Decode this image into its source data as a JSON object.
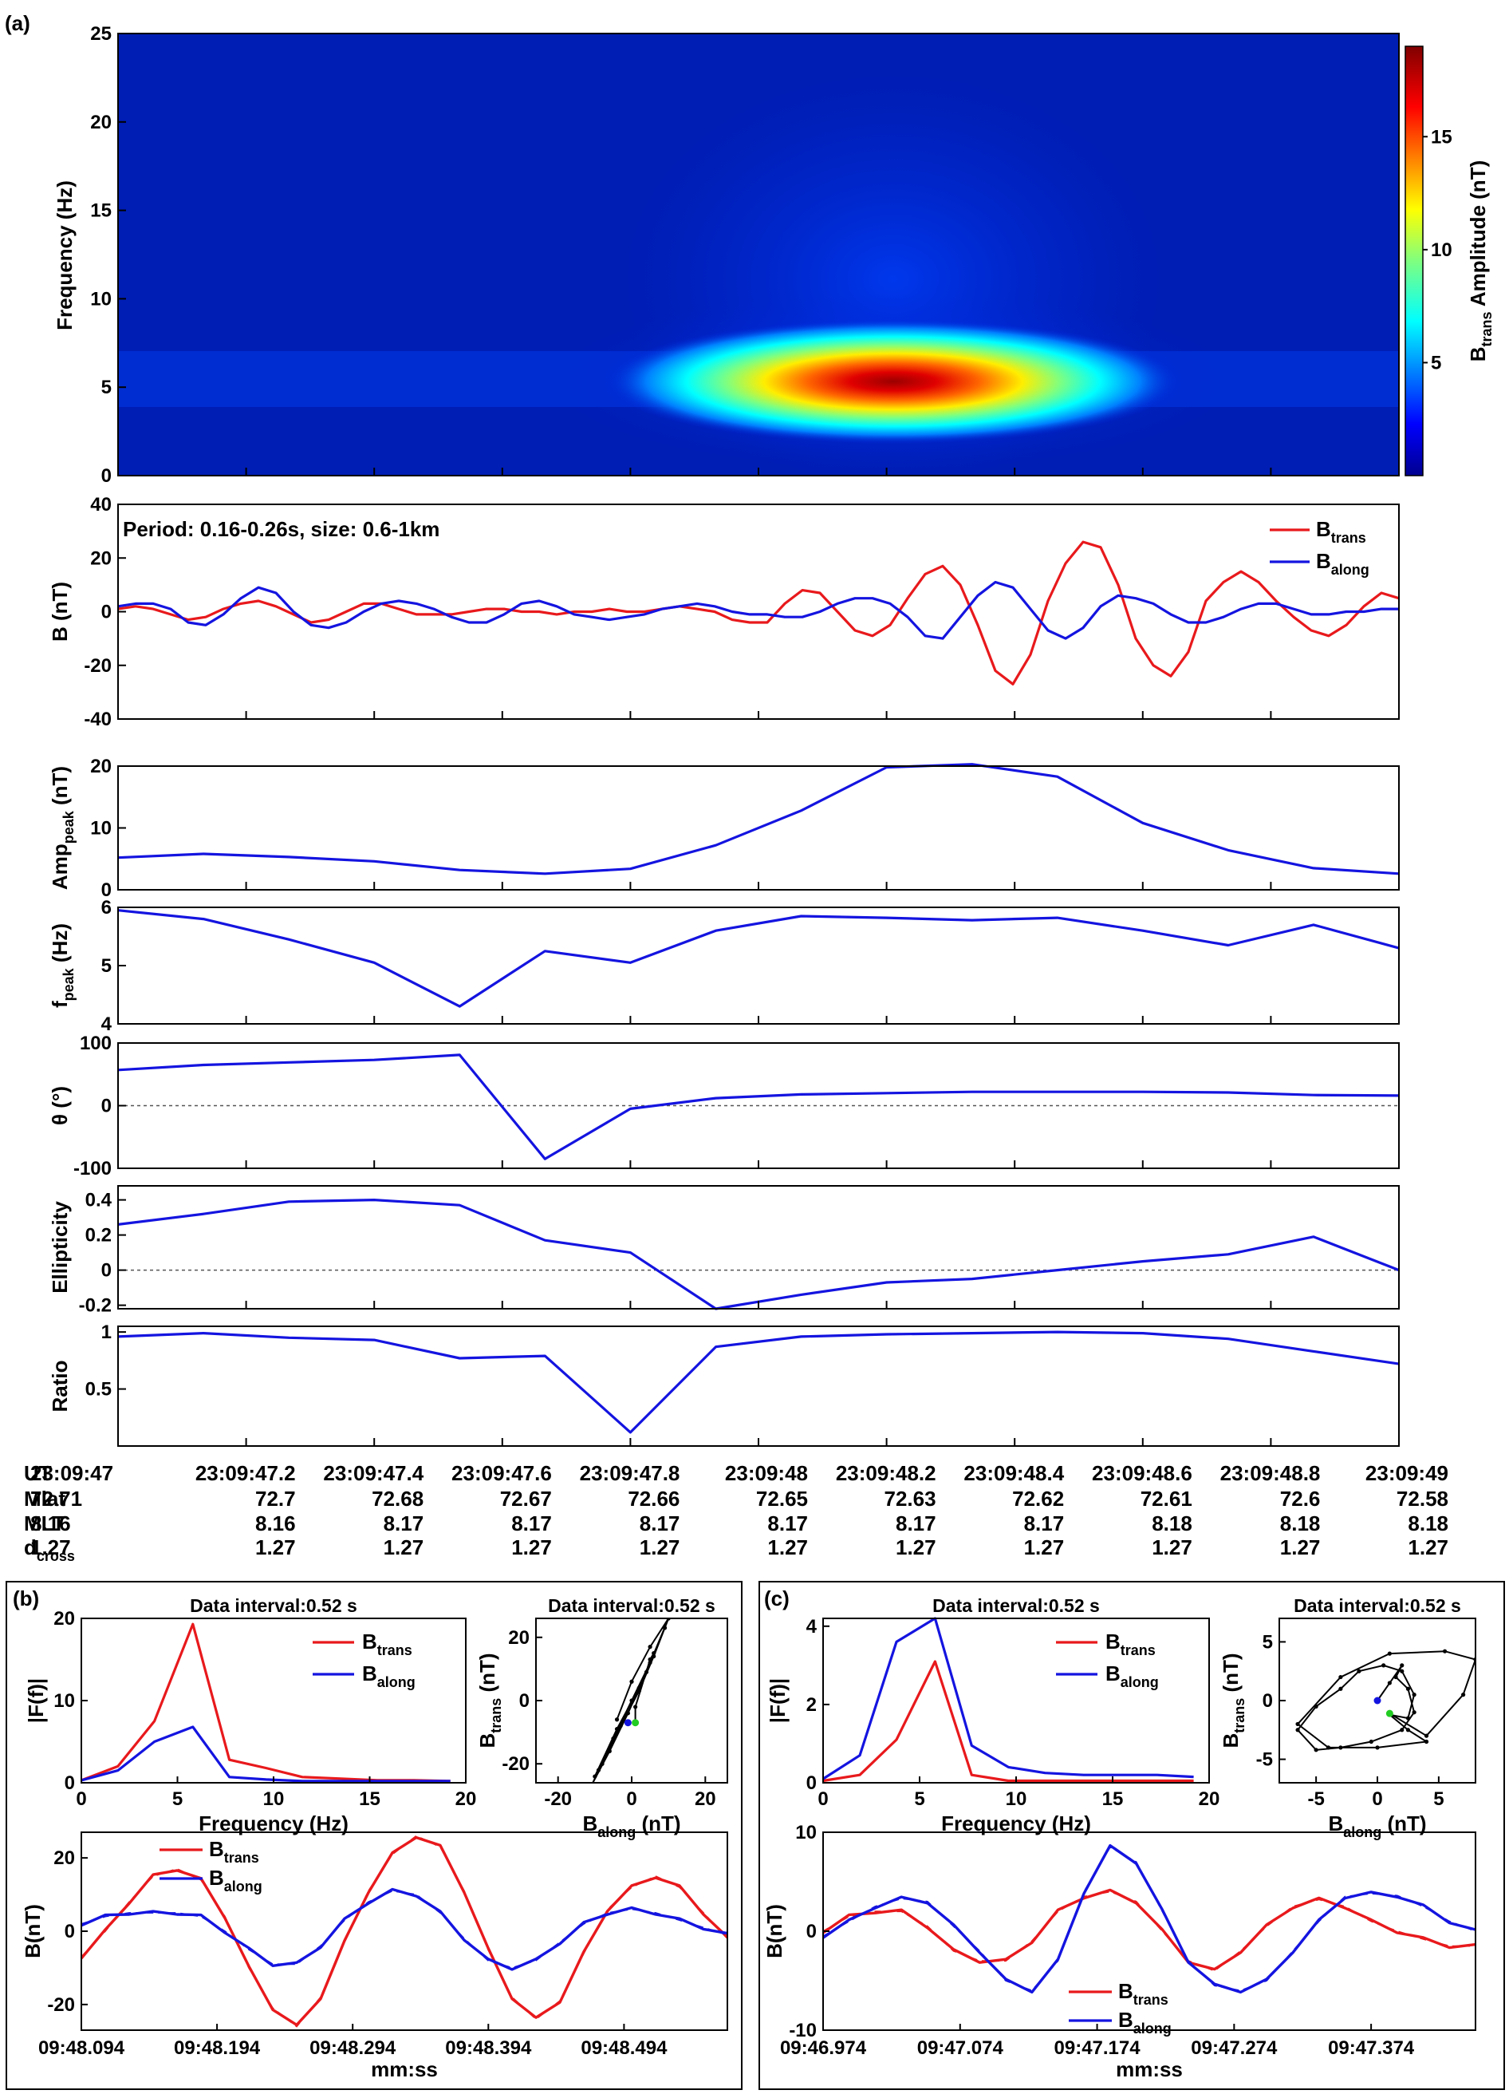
{
  "colors": {
    "trans": "#e8191c",
    "along": "#1414e0",
    "axis": "#000000",
    "zero_line": "#555555",
    "green_marker": "#22cc22"
  },
  "panel_letters": {
    "a": "(a)",
    "b": "(b)",
    "c": "(c)"
  },
  "chart_data": [
    {
      "id": "spectrogram",
      "type": "heatmap",
      "ylabel": "Frequency (Hz)",
      "ylim": [
        0,
        25
      ],
      "yticks": [
        0,
        5,
        10,
        15,
        20,
        25
      ],
      "colorbar": {
        "label_main": "B",
        "label_sub": "trans",
        "label_rest": " Amplitude (nT)",
        "range": [
          0,
          19
        ],
        "ticks": [
          5,
          10,
          15
        ]
      },
      "peak": {
        "freq_hz": 5.8,
        "max_nt": 19
      },
      "colormap": "jet"
    },
    {
      "id": "waveform",
      "type": "line",
      "annotation": "Period: 0.16-0.26s, size: 0.6-1km",
      "ylabel_main": "B (nT)",
      "ylim": [
        -40,
        40
      ],
      "yticks": [
        -40,
        -20,
        0,
        20,
        40
      ],
      "legend_position": "top-right",
      "series": [
        {
          "name_main": "B",
          "name_sub": "along",
          "color": "#1414e0",
          "values": [
            2,
            3,
            3,
            1,
            -4,
            -5,
            -1,
            5,
            9,
            7,
            0,
            -5,
            -6,
            -4,
            0,
            3,
            4,
            3,
            1,
            -2,
            -4,
            -4,
            -1,
            3,
            4,
            2,
            -1,
            -2,
            -3,
            -2,
            -1,
            1,
            2,
            3,
            2,
            0,
            -1,
            -1,
            -2,
            -2,
            0,
            3,
            5,
            5,
            3,
            -2,
            -9,
            -10,
            -2,
            6,
            11,
            9,
            1,
            -7,
            -10,
            -6,
            2,
            6,
            5,
            3,
            -1,
            -4,
            -4,
            -2,
            1,
            3,
            3,
            1,
            -1,
            -1,
            0,
            0,
            1,
            1
          ]
        },
        {
          "name_main": "B",
          "name_sub": "trans",
          "color": "#e8191c",
          "values": [
            1,
            2,
            1,
            -1,
            -3,
            -2,
            1,
            3,
            4,
            2,
            -1,
            -4,
            -3,
            0,
            3,
            3,
            1,
            -1,
            -1,
            -1,
            0,
            1,
            1,
            0,
            0,
            -1,
            0,
            0,
            1,
            0,
            0,
            1,
            2,
            1,
            0,
            -3,
            -4,
            -4,
            3,
            8,
            7,
            0,
            -7,
            -9,
            -5,
            5,
            14,
            17,
            10,
            -5,
            -22,
            -27,
            -16,
            4,
            18,
            26,
            24,
            10,
            -10,
            -20,
            -24,
            -15,
            4,
            11,
            15,
            11,
            4,
            -2,
            -7,
            -9,
            -5,
            2,
            7,
            5
          ]
        }
      ]
    },
    {
      "id": "amp_peak",
      "type": "line",
      "ylabel_main": "Amp",
      "ylabel_sub": "peak",
      "ylabel_rest": " (nT)",
      "ylim": [
        0,
        20
      ],
      "yticks": [
        0,
        10,
        20
      ],
      "values": [
        5.2,
        5.8,
        5.3,
        4.6,
        3.2,
        2.6,
        3.4,
        7.2,
        12.8,
        19.8,
        20.3,
        18.3,
        10.8,
        6.4,
        3.5,
        2.6
      ]
    },
    {
      "id": "f_peak",
      "type": "line",
      "ylabel_main": "f",
      "ylabel_sub": "peak",
      "ylabel_rest": " (Hz)",
      "ylim": [
        4,
        6
      ],
      "yticks": [
        4,
        5,
        6
      ],
      "values": [
        5.95,
        5.8,
        5.45,
        5.05,
        4.3,
        5.25,
        5.05,
        5.6,
        5.85,
        5.82,
        5.78,
        5.82,
        5.6,
        5.35,
        5.7,
        5.3
      ]
    },
    {
      "id": "theta",
      "type": "line",
      "ylabel_main": "θ",
      "ylabel_rest": " (°)",
      "ylim": [
        -100,
        100
      ],
      "yticks": [
        -100,
        0,
        100
      ],
      "zero_line": true,
      "values": [
        57,
        65,
        69,
        73,
        81,
        -85,
        -5,
        12,
        18,
        20,
        22,
        22,
        22,
        21,
        17,
        16
      ]
    },
    {
      "id": "ellipticity",
      "type": "line",
      "ylabel_main": "Ellipticity",
      "ylim": [
        -0.22,
        0.48
      ],
      "yticks": [
        -0.2,
        0,
        0.2,
        0.4
      ],
      "ytick_labels": [
        "-0.2",
        "0",
        "0.2",
        "0.4"
      ],
      "zero_line": true,
      "values": [
        0.26,
        0.32,
        0.39,
        0.4,
        0.37,
        0.17,
        0.1,
        -0.22,
        -0.14,
        -0.07,
        -0.05,
        0.0,
        0.05,
        0.09,
        0.19,
        0.0
      ]
    },
    {
      "id": "ratio",
      "type": "line",
      "ylabel_main": "Ratio",
      "ylim": [
        0,
        1.05
      ],
      "yticks": [
        0.5,
        1
      ],
      "ytick_labels": [
        "0.5",
        "1"
      ],
      "values": [
        0.96,
        0.99,
        0.95,
        0.93,
        0.77,
        0.79,
        0.12,
        0.87,
        0.96,
        0.98,
        0.99,
        1.0,
        0.99,
        0.94,
        0.83,
        0.72
      ]
    },
    {
      "id": "fft_b",
      "type": "line",
      "title": "Data interval:0.52 s",
      "xlabel": "Frequency (Hz)",
      "ylabel": "|F(f)|",
      "xlim": [
        0,
        20
      ],
      "ylim": [
        0,
        20
      ],
      "xticks": [
        0,
        5,
        10,
        15,
        20
      ],
      "yticks": [
        0,
        10,
        20
      ],
      "legend_position": "top-right",
      "x": [
        0,
        1.9,
        3.8,
        5.8,
        7.7,
        9.6,
        11.5,
        13.5,
        15.4,
        17.3,
        19.2
      ],
      "series": [
        {
          "name_main": "B",
          "name_sub": "trans",
          "color": "#e8191c",
          "values": [
            0.3,
            2.0,
            7.5,
            19.3,
            2.8,
            1.8,
            0.7,
            0.5,
            0.3,
            0.3,
            0.2
          ]
        },
        {
          "name_main": "B",
          "name_sub": "along",
          "color": "#1414e0",
          "values": [
            0.3,
            1.5,
            5.0,
            6.8,
            0.7,
            0.4,
            0.2,
            0.2,
            0.2,
            0.2,
            0.2
          ]
        }
      ]
    },
    {
      "id": "hodo_b",
      "type": "scatter",
      "title": "Data interval:0.52 s",
      "xlabel_main": "B",
      "xlabel_sub": "along",
      "xlabel_rest": " (nT)",
      "ylabel_main": "B",
      "ylabel_sub": "trans",
      "ylabel_rest": " (nT)",
      "xlim": [
        -26,
        26
      ],
      "ylim": [
        -26,
        26
      ],
      "xticks": [
        -20,
        0,
        20
      ],
      "yticks": [
        -20,
        0,
        20
      ],
      "points": [
        [
          -4,
          -6
        ],
        [
          0,
          6
        ],
        [
          5,
          17
        ],
        [
          10,
          26
        ],
        [
          6,
          14
        ],
        [
          2,
          3
        ],
        [
          -3,
          -8
        ],
        [
          -8,
          -20
        ],
        [
          -11,
          -27
        ],
        [
          -6,
          -16
        ],
        [
          -1,
          -4
        ],
        [
          4,
          9
        ],
        [
          9,
          23
        ],
        [
          10,
          26
        ],
        [
          5,
          12
        ],
        [
          0,
          0
        ],
        [
          -5,
          -12
        ],
        [
          -9,
          -22
        ],
        [
          -10,
          -24
        ],
        [
          -4,
          -9
        ],
        [
          2,
          4
        ],
        [
          6,
          15
        ],
        [
          5,
          13
        ],
        [
          1,
          -2
        ],
        [
          1,
          -7
        ]
      ],
      "start_point": [
        -1,
        -7
      ],
      "end_point": [
        1,
        -7
      ]
    },
    {
      "id": "wave_b",
      "type": "line",
      "xlabel": "mm:ss",
      "ylabel": "B(nT)",
      "ylim": [
        -27,
        27
      ],
      "yticks": [
        -20,
        0,
        20
      ],
      "xtick_labels": [
        "09:48.094",
        "09:48.194",
        "09:48.294",
        "09:48.394",
        "09:48.494"
      ],
      "legend_position": "top-left",
      "series": [
        {
          "name_main": "B",
          "name_sub": "trans",
          "color": "#e8191c",
          "values": [
            -7,
            0,
            8,
            15,
            17,
            14,
            4,
            -10,
            -21,
            -26,
            -18,
            -3,
            11,
            21,
            26,
            23,
            11,
            -5,
            -18,
            -24,
            -19,
            -6,
            6,
            12,
            15,
            12,
            5,
            -2
          ]
        },
        {
          "name_main": "B",
          "name_sub": "along",
          "color": "#1414e0",
          "values": [
            2,
            4,
            5,
            5,
            5,
            4,
            0,
            -5,
            -9,
            -9,
            -4,
            3,
            8,
            11,
            10,
            5,
            -2,
            -8,
            -10,
            -8,
            -3,
            2,
            5,
            6,
            5,
            3,
            1,
            -1
          ]
        }
      ]
    },
    {
      "id": "fft_c",
      "type": "line",
      "title": "Data interval:0.52 s",
      "xlabel": "Frequency (Hz)",
      "ylabel": "|F(f)|",
      "xlim": [
        0,
        20
      ],
      "ylim": [
        0,
        4.2
      ],
      "xticks": [
        0,
        5,
        10,
        15,
        20
      ],
      "yticks": [
        0,
        2,
        4
      ],
      "legend_position": "top-right",
      "x": [
        0,
        1.9,
        3.8,
        5.8,
        7.7,
        9.6,
        11.5,
        13.5,
        15.4,
        17.3,
        19.2
      ],
      "series": [
        {
          "name_main": "B",
          "name_sub": "trans",
          "color": "#e8191c",
          "values": [
            0.05,
            0.2,
            1.1,
            3.1,
            0.2,
            0.05,
            0.05,
            0.05,
            0.05,
            0.05,
            0.05
          ]
        },
        {
          "name_main": "B",
          "name_sub": "along",
          "color": "#1414e0",
          "values": [
            0.1,
            0.7,
            3.6,
            4.2,
            0.95,
            0.4,
            0.25,
            0.2,
            0.2,
            0.2,
            0.15
          ]
        }
      ]
    },
    {
      "id": "hodo_c",
      "type": "scatter",
      "title": "Data interval:0.52 s",
      "xlabel_main": "B",
      "xlabel_sub": "along",
      "xlabel_rest": " (nT)",
      "ylabel_main": "B",
      "ylabel_sub": "trans",
      "ylabel_rest": " (nT)",
      "xlim": [
        -8,
        8
      ],
      "ylim": [
        -7,
        7
      ],
      "xticks": [
        -5,
        0,
        5
      ],
      "yticks": [
        -5,
        0,
        5
      ],
      "points": [
        [
          0,
          0
        ],
        [
          1,
          1.5
        ],
        [
          2,
          3
        ],
        [
          1.5,
          2
        ],
        [
          2.5,
          1
        ],
        [
          3,
          -1
        ],
        [
          2,
          -2.5
        ],
        [
          -0.5,
          -3.5
        ],
        [
          -3,
          -4
        ],
        [
          -5,
          -4.2
        ],
        [
          -6.5,
          -2.5
        ],
        [
          -5,
          -0.5
        ],
        [
          -3,
          1
        ],
        [
          -1.5,
          2.5
        ],
        [
          0.5,
          3
        ],
        [
          2,
          2.5
        ],
        [
          3,
          0.5
        ],
        [
          2.5,
          -1.5
        ],
        [
          1,
          -1.2
        ],
        [
          2.5,
          -2.5
        ],
        [
          4,
          -3.5
        ],
        [
          0,
          -4
        ],
        [
          -4,
          -4
        ],
        [
          -6.5,
          -2
        ],
        [
          -3,
          2
        ],
        [
          1,
          4
        ],
        [
          5.5,
          4.2
        ],
        [
          8,
          3.5
        ],
        [
          7,
          0.5
        ],
        [
          4,
          -3
        ],
        [
          1,
          -1.1
        ]
      ],
      "start_point": [
        0,
        0
      ],
      "end_point": [
        1,
        -1.1
      ]
    },
    {
      "id": "wave_c",
      "type": "line",
      "xlabel": "mm:ss",
      "ylabel": "B(nT)",
      "ylim": [
        -10,
        10
      ],
      "yticks": [
        -10,
        0,
        10
      ],
      "xtick_labels": [
        "09:46.974",
        "09:47.074",
        "09:47.174",
        "09:47.274",
        "09:47.374"
      ],
      "legend_position": "bottom-center",
      "series": [
        {
          "name_main": "B",
          "name_sub": "trans",
          "color": "#e8191c",
          "values": [
            0,
            1.5,
            2,
            2,
            0.5,
            -2,
            -3,
            -3,
            -1,
            2,
            3.5,
            4,
            3,
            0,
            -3,
            -4,
            -2,
            0.5,
            2.5,
            3.2,
            2.5,
            1,
            0,
            -0.8,
            -1.5,
            -1.5
          ]
        },
        {
          "name_main": "B",
          "name_sub": "along",
          "color": "#1414e0",
          "values": [
            -0.5,
            1,
            2.5,
            3.3,
            3,
            0.5,
            -2,
            -5,
            -6,
            -3,
            4,
            8.5,
            7,
            2,
            -3,
            -5.5,
            -6,
            -5,
            -2,
            1,
            3.5,
            3.8,
            3.6,
            2.5,
            1,
            0
          ]
        }
      ]
    }
  ],
  "x_axis_table": {
    "rows": [
      {
        "label_main": "UT",
        "label_sub": "",
        "values": [
          "23:09:47",
          "23:09:47.2",
          "23:09:47.4",
          "23:09:47.6",
          "23:09:47.8",
          "23:09:48",
          "23:09:48.2",
          "23:09:48.4",
          "23:09:48.6",
          "23:09:48.8",
          "23:09:49"
        ]
      },
      {
        "label_main": "Mlat",
        "label_sub": "",
        "values": [
          "72.71",
          "72.7",
          "72.68",
          "72.67",
          "72.66",
          "72.65",
          "72.63",
          "72.62",
          "72.61",
          "72.6",
          "72.58"
        ]
      },
      {
        "label_main": "MLT",
        "label_sub": "",
        "values": [
          "8.16",
          "8.16",
          "8.17",
          "8.17",
          "8.17",
          "8.17",
          "8.17",
          "8.17",
          "8.18",
          "8.18",
          "8.18"
        ]
      },
      {
        "label_main": "d",
        "label_sub": "cross",
        "values": [
          "1.27",
          "1.27",
          "1.27",
          "1.27",
          "1.27",
          "1.27",
          "1.27",
          "1.27",
          "1.27",
          "1.27",
          "1.27"
        ]
      }
    ]
  }
}
